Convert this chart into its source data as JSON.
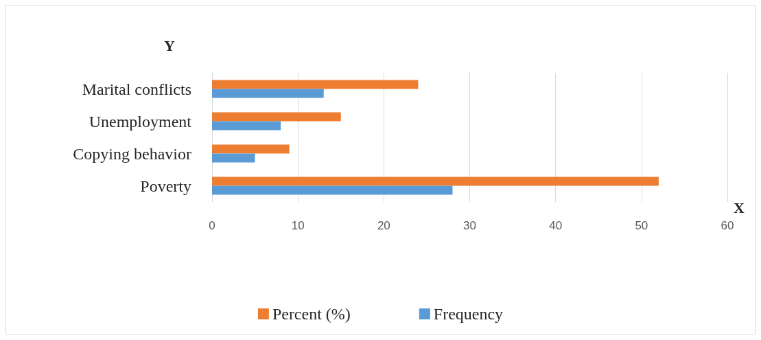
{
  "chart_data": {
    "type": "bar",
    "orientation": "horizontal",
    "xlabel": "X",
    "ylabel": "Y",
    "categories": [
      "Marital conflicts",
      "Unemployment",
      "Copying behavior",
      "Poverty"
    ],
    "series": [
      {
        "name": "Percent (%)",
        "color": "#ed7d31",
        "values": [
          24,
          15,
          9,
          52
        ]
      },
      {
        "name": "Frequency",
        "color": "#5b9bd5",
        "values": [
          13,
          8,
          5,
          28
        ]
      }
    ],
    "xlim": [
      0,
      60
    ],
    "xticks": [
      0,
      10,
      20,
      30,
      40,
      50,
      60
    ],
    "grid": "x",
    "legend": "bottom"
  }
}
